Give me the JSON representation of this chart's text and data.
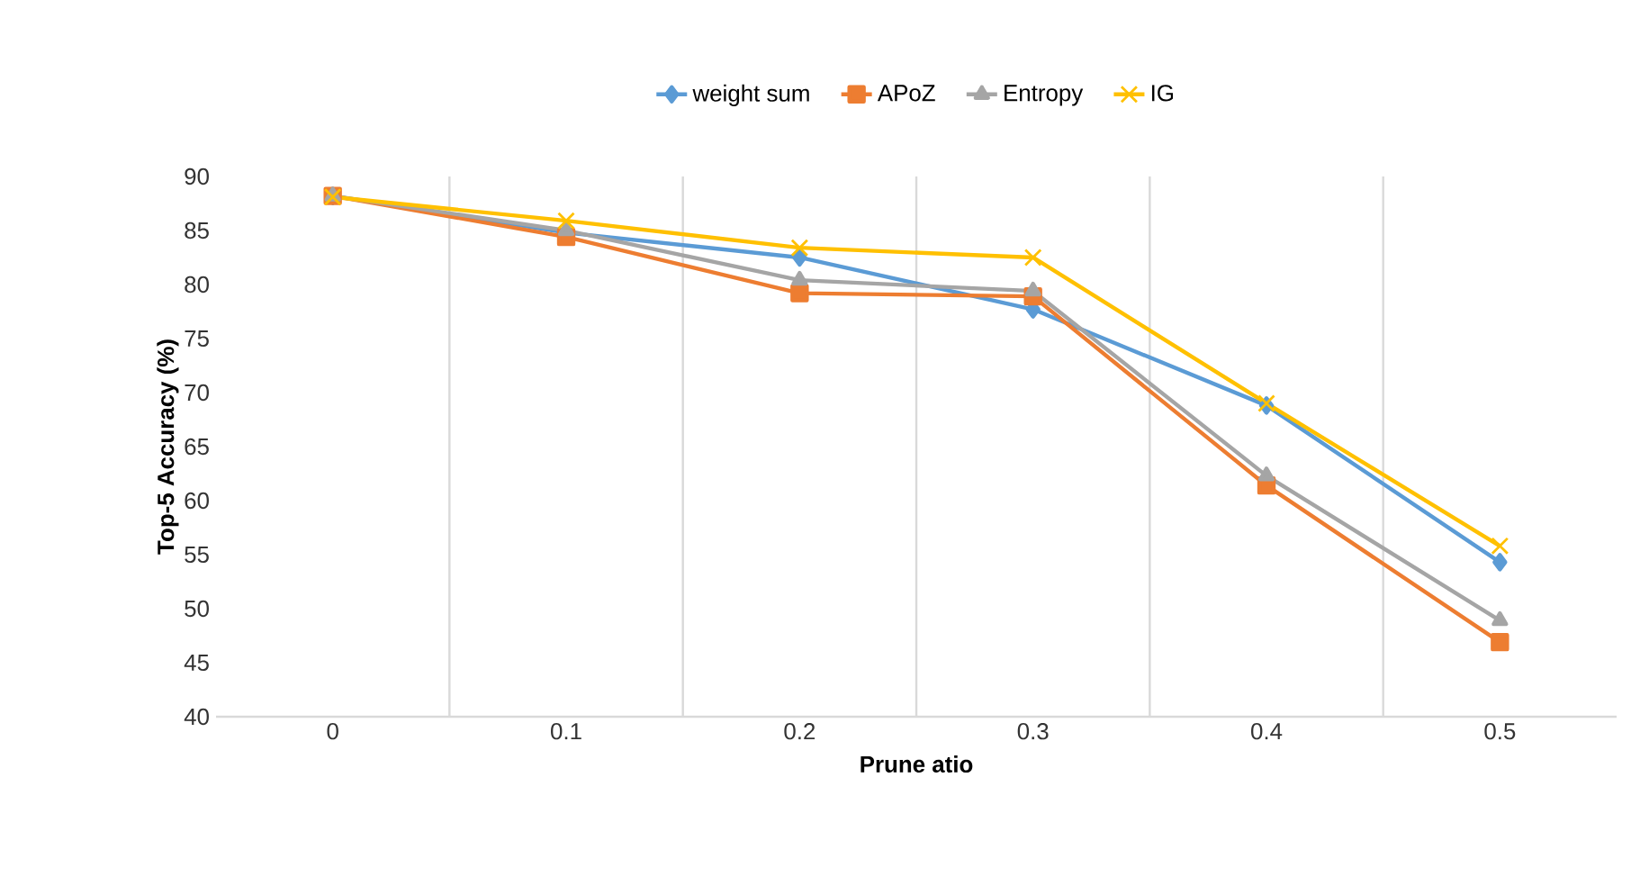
{
  "chart_data": {
    "type": "line",
    "xlabel": "Prune atio",
    "ylabel": "Top-5 Accuracy (%)",
    "categories": [
      "0",
      "0.1",
      "0.2",
      "0.3",
      "0.4",
      "0.5"
    ],
    "series": [
      {
        "name": "weight sum",
        "color": "#5b9bd5",
        "marker": "diamond",
        "values": [
          88.2,
          84.8,
          82.5,
          77.7,
          68.8,
          54.3
        ]
      },
      {
        "name": "APoZ",
        "color": "#ed7d31",
        "marker": "square",
        "values": [
          88.2,
          84.4,
          79.2,
          78.9,
          61.4,
          46.9
        ]
      },
      {
        "name": "Entropy",
        "color": "#a5a5a5",
        "marker": "triangle",
        "values": [
          88.2,
          85.0,
          80.4,
          79.4,
          62.3,
          48.9
        ]
      },
      {
        "name": "IG",
        "color": "#ffc000",
        "marker": "cross",
        "values": [
          88.1,
          85.9,
          83.4,
          82.5,
          69.0,
          55.8
        ]
      }
    ],
    "ylim": [
      40,
      90
    ],
    "yticks": [
      40,
      45,
      50,
      55,
      60,
      65,
      70,
      75,
      80,
      85,
      90
    ],
    "grid": "x",
    "legend": "top",
    "line_style": "solid"
  }
}
